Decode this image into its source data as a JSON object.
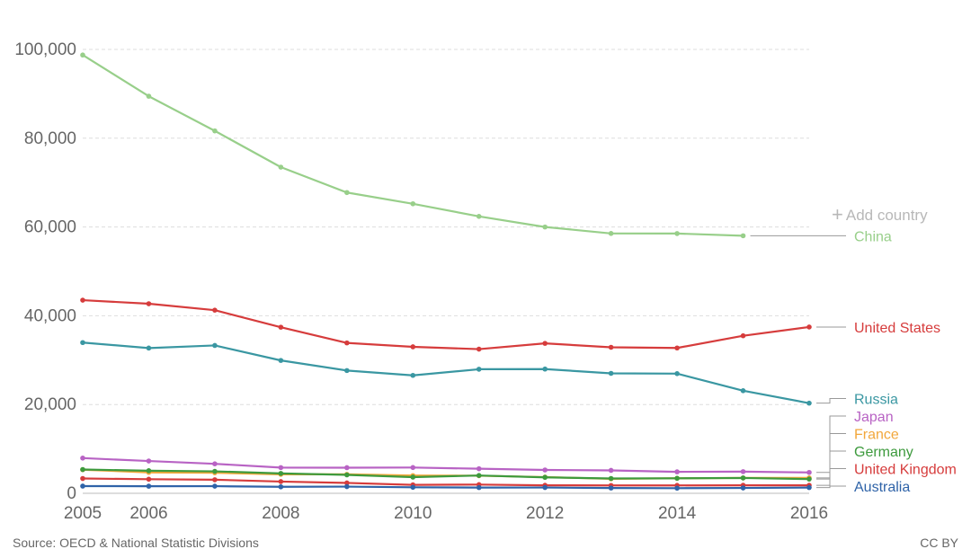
{
  "source": "Source: OECD & National Statistic Divisions",
  "license": "CC BY",
  "add_country_label": "Add country",
  "chart_data": {
    "type": "line",
    "title": "",
    "xlabel": "",
    "ylabel": "",
    "xlim": [
      2005,
      2016
    ],
    "ylim": [
      0,
      100000
    ],
    "x_ticks": [
      "2005",
      "2006",
      "2008",
      "2010",
      "2012",
      "2014",
      "2016"
    ],
    "y_ticks": [
      "0",
      "20,000",
      "40,000",
      "60,000",
      "80,000",
      "100,000"
    ],
    "grid": "horizontal dashed",
    "legend": "right, direct labels",
    "series": [
      {
        "name": "China",
        "color": "#98cf8a",
        "x": [
          2005,
          2006,
          2007,
          2008,
          2009,
          2010,
          2011,
          2012,
          2013,
          2014,
          2015
        ],
        "values": [
          98738,
          89455,
          81649,
          73484,
          67759,
          65225,
          62387,
          59997,
          58539,
          58523,
          58022
        ]
      },
      {
        "name": "United States",
        "color": "#d63c3c",
        "x": [
          2005,
          2006,
          2007,
          2008,
          2009,
          2010,
          2011,
          2012,
          2013,
          2014,
          2015,
          2016
        ],
        "values": [
          43510,
          42708,
          41259,
          37423,
          33883,
          32999,
          32479,
          33782,
          32894,
          32744,
          35485,
          37461
        ]
      },
      {
        "name": "Russia",
        "color": "#3a97a2",
        "x": [
          2005,
          2006,
          2007,
          2008,
          2009,
          2010,
          2011,
          2012,
          2013,
          2014,
          2015,
          2016
        ],
        "values": [
          33957,
          32724,
          33308,
          29936,
          27659,
          26567,
          27953,
          27991,
          27025,
          26963,
          23114,
          20308
        ]
      },
      {
        "name": "Japan",
        "color": "#b863c4",
        "x": [
          2005,
          2006,
          2007,
          2008,
          2009,
          2010,
          2011,
          2012,
          2013,
          2014,
          2015,
          2016
        ],
        "values": [
          7931,
          7272,
          6639,
          5796,
          5772,
          5806,
          5535,
          5261,
          5165,
          4838,
          4885,
          4698
        ]
      },
      {
        "name": "France",
        "color": "#f2a73b",
        "x": [
          2005,
          2006,
          2007,
          2008,
          2009,
          2010,
          2011,
          2012,
          2013,
          2014,
          2015,
          2016
        ],
        "values": [
          5318,
          4709,
          4620,
          4275,
          4273,
          3992,
          3963,
          3653,
          3268,
          3384,
          3461,
          3477
        ]
      },
      {
        "name": "Germany",
        "color": "#3d9a3d",
        "x": [
          2005,
          2006,
          2007,
          2008,
          2009,
          2010,
          2011,
          2012,
          2013,
          2014,
          2015,
          2016
        ],
        "values": [
          5361,
          5091,
          4949,
          4477,
          4152,
          3648,
          4009,
          3600,
          3339,
          3377,
          3459,
          3206
        ]
      },
      {
        "name": "United Kingdom",
        "color": "#d63c3c",
        "x": [
          2005,
          2006,
          2007,
          2008,
          2009,
          2010,
          2011,
          2012,
          2013,
          2014,
          2015,
          2016
        ],
        "values": [
          3336,
          3172,
          3059,
          2645,
          2337,
          1905,
          1960,
          1802,
          1770,
          1775,
          1804,
          1804
        ]
      },
      {
        "name": "Australia",
        "color": "#2f63a8",
        "x": [
          2005,
          2006,
          2007,
          2008,
          2009,
          2010,
          2011,
          2012,
          2013,
          2014,
          2015,
          2016
        ],
        "values": [
          1627,
          1601,
          1603,
          1464,
          1509,
          1353,
          1292,
          1300,
          1187,
          1150,
          1204,
          1295
        ]
      }
    ]
  }
}
